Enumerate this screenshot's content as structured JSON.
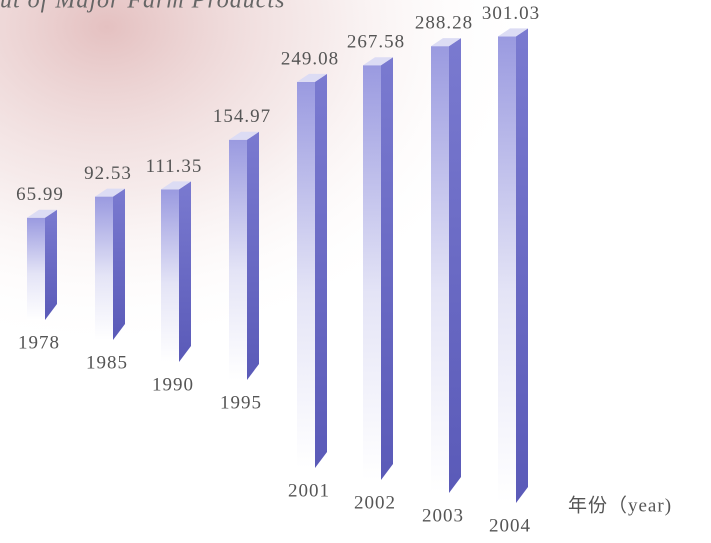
{
  "chart_data": {
    "type": "bar",
    "title": "ut of Major Farm Products",
    "categories": [
      "1978",
      "1985",
      "1990",
      "1995",
      "2001",
      "2002",
      "2003",
      "2004"
    ],
    "values": [
      65.99,
      92.53,
      111.35,
      154.97,
      249.08,
      267.58,
      288.28,
      301.03
    ],
    "color": "#8888d8",
    "x_label": "年份（year)"
  }
}
